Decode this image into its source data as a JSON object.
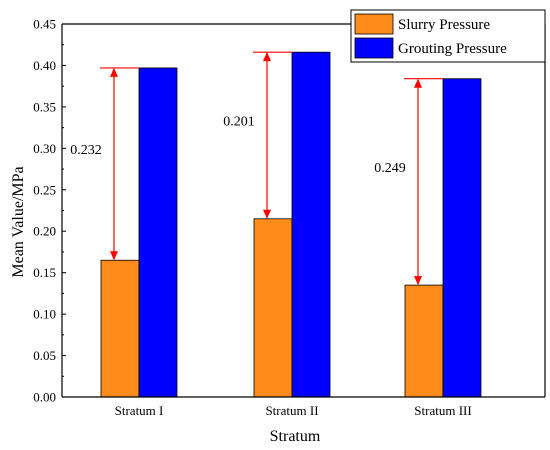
{
  "chart_data": {
    "type": "bar",
    "xlabel": "Stratum",
    "ylabel": "Mean Value/MPa",
    "categories": [
      "Stratum I",
      "Stratum II",
      "Stratum III"
    ],
    "ylim": [
      0,
      0.45
    ],
    "yticks": [
      "0.00",
      "0.05",
      "0.10",
      "0.15",
      "0.20",
      "0.25",
      "0.30",
      "0.35",
      "0.40",
      "0.45"
    ],
    "series": [
      {
        "name": "Slurry Pressure",
        "values": [
          0.165,
          0.215,
          0.135
        ],
        "color": "#ff8c1a"
      },
      {
        "name": "Grouting Pressure",
        "values": [
          0.397,
          0.416,
          0.384
        ],
        "color": "#0000ff"
      }
    ],
    "annotations": [
      {
        "category": "Stratum I",
        "label": "0.232",
        "from": 0.165,
        "to": 0.397
      },
      {
        "category": "Stratum II",
        "label": "0.201",
        "from": 0.215,
        "to": 0.416
      },
      {
        "category": "Stratum III",
        "label": "0.249",
        "from": 0.135,
        "to": 0.384
      }
    ],
    "annotation_color": "#ff0000",
    "legend_position": "top-right",
    "grid": false
  }
}
